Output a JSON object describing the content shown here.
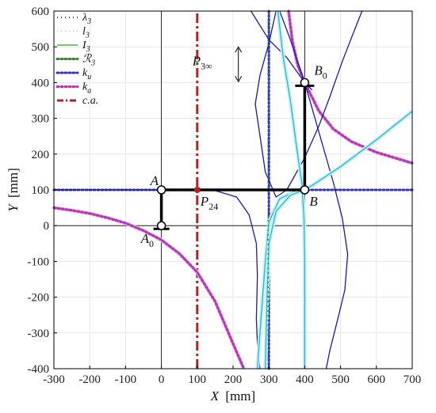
{
  "chart_data": {
    "type": "line",
    "xlabel": {
      "var": "X",
      "unit": "[mm]"
    },
    "ylabel": {
      "var": "Y",
      "unit": "[mm]"
    },
    "xlim": [
      -300,
      700
    ],
    "ylim": [
      -400,
      600
    ],
    "xticks": [
      -300,
      -200,
      -100,
      0,
      100,
      200,
      300,
      400,
      500,
      600,
      700
    ],
    "yticks": [
      -400,
      -300,
      -200,
      -100,
      0,
      100,
      200,
      300,
      400,
      500,
      600
    ],
    "grid": true,
    "legend_position": "top-left",
    "legend": [
      {
        "key": "lambda3",
        "label": "λ",
        "sub": "3",
        "color": "#000000",
        "style": "dotted"
      },
      {
        "key": "l3",
        "label": "l",
        "sub": "3",
        "color": "#7fd8e6",
        "style": "dotted"
      },
      {
        "key": "I3",
        "label": "I",
        "sub": "3",
        "color": "#2ca02c",
        "style": "solid"
      },
      {
        "key": "R3",
        "label": "ℛ",
        "sub": "3",
        "color": "#2e8b1e",
        "style": "dotted-thick"
      },
      {
        "key": "ku",
        "label": "k",
        "sub": "u",
        "color": "#3333cc",
        "style": "dotted-thick"
      },
      {
        "key": "ka",
        "label": "k",
        "sub": "a",
        "color": "#b03ab0",
        "style": "dotted-thick"
      },
      {
        "key": "ca",
        "label": "c.a.",
        "sub": "",
        "color": "#b22222",
        "style": "dashdot"
      }
    ],
    "series": [
      {
        "key": "ku_h",
        "color": "#3333cc",
        "points": [
          [
            -300,
            100
          ],
          [
            700,
            100
          ]
        ]
      },
      {
        "key": "ku_v",
        "color": "#3333cc",
        "points": [
          [
            300,
            -400
          ],
          [
            300,
            600
          ]
        ]
      },
      {
        "key": "ca",
        "color": "#b22222",
        "points": [
          [
            100,
            -400
          ],
          [
            100,
            600
          ]
        ]
      },
      {
        "key": "ka_left",
        "color": "#b03ab0",
        "points": [
          [
            -300,
            50
          ],
          [
            -250,
            43
          ],
          [
            -200,
            34
          ],
          [
            -150,
            22
          ],
          [
            -100,
            7
          ],
          [
            -50,
            -14
          ],
          [
            0,
            -40
          ],
          [
            50,
            -78
          ],
          [
            100,
            -130
          ],
          [
            150,
            -212
          ],
          [
            200,
            -330
          ],
          [
            230,
            -400
          ]
        ]
      },
      {
        "key": "ka_right",
        "color": "#b03ab0",
        "points": [
          [
            355,
            600
          ],
          [
            365,
            520
          ],
          [
            380,
            450
          ],
          [
            400,
            400
          ],
          [
            440,
            320
          ],
          [
            480,
            270
          ],
          [
            530,
            235
          ],
          [
            600,
            205
          ],
          [
            650,
            190
          ],
          [
            700,
            175
          ]
        ]
      },
      {
        "key": "cubic_left",
        "color": "#1a1aa8",
        "points": [
          [
            -300,
            100
          ],
          [
            50,
            100
          ],
          [
            150,
            98
          ],
          [
            210,
            80
          ],
          [
            245,
            30
          ],
          [
            265,
            -50
          ],
          [
            268,
            -140
          ],
          [
            265,
            -260
          ],
          [
            268,
            -330
          ],
          [
            275,
            -400
          ]
        ]
      },
      {
        "key": "cubic_right_upper",
        "color": "#1a1aa8",
        "points": [
          [
            262,
            340
          ],
          [
            290,
            150
          ],
          [
            320,
            80
          ],
          [
            350,
            100
          ],
          [
            400,
            190
          ],
          [
            440,
            280
          ],
          [
            470,
            360
          ],
          [
            505,
            460
          ],
          [
            540,
            550
          ],
          [
            560,
            600
          ]
        ]
      },
      {
        "key": "cubic_right_lower",
        "color": "#1a1aa8",
        "points": [
          [
            262,
            340
          ],
          [
            275,
            420
          ],
          [
            300,
            510
          ],
          [
            320,
            600
          ]
        ]
      },
      {
        "key": "cubic_arc",
        "color": "#1a1aa8",
        "points": [
          [
            330,
            600
          ],
          [
            360,
            520
          ],
          [
            400,
            400
          ],
          [
            440,
            260
          ],
          [
            480,
            120
          ],
          [
            505,
            20
          ],
          [
            520,
            -80
          ],
          [
            512,
            -180
          ],
          [
            490,
            -270
          ],
          [
            470,
            -350
          ],
          [
            460,
            -400
          ]
        ]
      },
      {
        "key": "cubic_upper_arc",
        "color": "#1a1aa8",
        "points": [
          [
            250,
            600
          ],
          [
            300,
            520
          ],
          [
            350,
            470
          ],
          [
            400,
            400
          ],
          [
            420,
            380
          ]
        ]
      },
      {
        "key": "l3_a",
        "color": "#29b6cc",
        "points": [
          [
            325,
            600
          ],
          [
            340,
            470
          ],
          [
            360,
            350
          ],
          [
            380,
            200
          ],
          [
            392,
            120
          ],
          [
            398,
            20
          ],
          [
            400,
            -100
          ],
          [
            400,
            -400
          ]
        ]
      },
      {
        "key": "l3_b",
        "color": "#29b6cc",
        "points": [
          [
            268,
            -400
          ],
          [
            275,
            -300
          ],
          [
            290,
            -100
          ],
          [
            300,
            10
          ],
          [
            330,
            75
          ],
          [
            370,
            95
          ],
          [
            420,
            112
          ],
          [
            500,
            165
          ],
          [
            600,
            240
          ],
          [
            700,
            320
          ]
        ]
      },
      {
        "key": "l3_c",
        "color": "#29b6cc",
        "points": [
          [
            290,
            -400
          ],
          [
            295,
            -200
          ],
          [
            300,
            -50
          ],
          [
            320,
            40
          ],
          [
            360,
            85
          ],
          [
            400,
            100
          ],
          [
            420,
            112
          ]
        ]
      }
    ],
    "links": [
      {
        "key": "A0A",
        "points": [
          [
            0,
            0
          ],
          [
            0,
            100
          ]
        ]
      },
      {
        "key": "AB",
        "points": [
          [
            0,
            100
          ],
          [
            400,
            100
          ]
        ]
      },
      {
        "key": "BB0",
        "points": [
          [
            400,
            100
          ],
          [
            400,
            400
          ]
        ]
      }
    ],
    "joints": [
      {
        "key": "A",
        "x": 0,
        "y": 100,
        "label": "A",
        "sub": ""
      },
      {
        "key": "B",
        "x": 400,
        "y": 100,
        "label": "B",
        "sub": ""
      },
      {
        "key": "A0",
        "x": 0,
        "y": 0,
        "label": "A",
        "sub": "0"
      },
      {
        "key": "B0",
        "x": 400,
        "y": 400,
        "label": "B",
        "sub": "0"
      },
      {
        "key": "P24",
        "x": 100,
        "y": 100,
        "label": "P",
        "sub": "24"
      }
    ],
    "annotations": [
      {
        "key": "P3inf",
        "label": "P",
        "sub": "3∞",
        "x": 175,
        "y": 460
      }
    ]
  }
}
